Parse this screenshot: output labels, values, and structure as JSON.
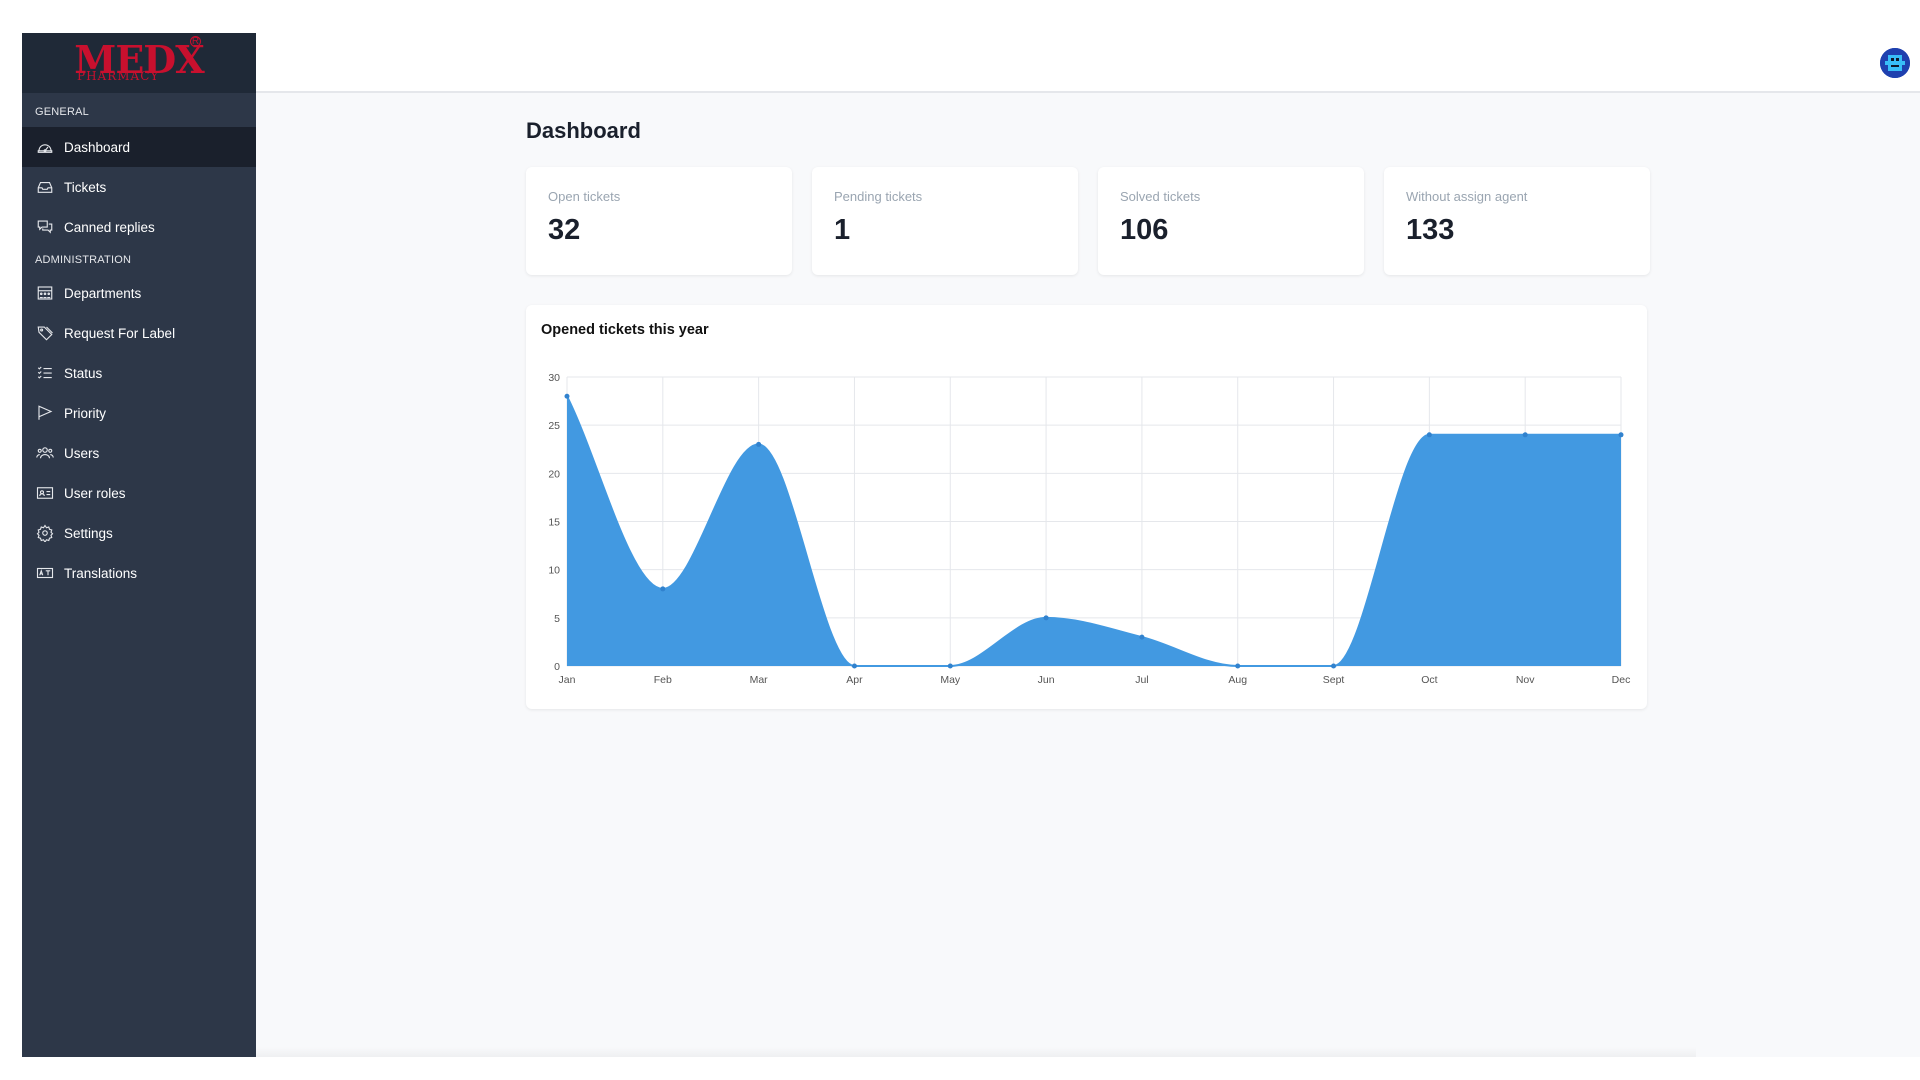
{
  "brand": {
    "name": "MEDX",
    "sub": "PHARMACY",
    "reg": "R"
  },
  "sidebar": {
    "sections": [
      {
        "title": "GENERAL"
      },
      {
        "title": "ADMINISTRATION"
      }
    ],
    "items": [
      {
        "label": "Dashboard",
        "icon": "gauge-icon",
        "active": true
      },
      {
        "label": "Tickets",
        "icon": "inbox-icon"
      },
      {
        "label": "Canned replies",
        "icon": "chat-bubbles-icon"
      },
      {
        "label": "Departments",
        "icon": "office-icon"
      },
      {
        "label": "Request For Label",
        "icon": "tag-icon"
      },
      {
        "label": "Status",
        "icon": "checklist-icon"
      },
      {
        "label": "Priority",
        "icon": "flag-icon"
      },
      {
        "label": "Users",
        "icon": "users-icon"
      },
      {
        "label": "User roles",
        "icon": "id-card-icon"
      },
      {
        "label": "Settings",
        "icon": "gear-icon"
      },
      {
        "label": "Translations",
        "icon": "translate-icon"
      }
    ]
  },
  "main": {
    "title": "Dashboard",
    "stats": [
      {
        "label": "Open tickets",
        "value": "32"
      },
      {
        "label": "Pending tickets",
        "value": "1"
      },
      {
        "label": "Solved tickets",
        "value": "106"
      },
      {
        "label": "Without assign agent",
        "value": "133"
      }
    ]
  },
  "colors": {
    "sidebar": "#2d3748",
    "active": "#1a202c",
    "chart_fill": "#4299e1",
    "brand": "#c8102e"
  },
  "chart_data": {
    "type": "area",
    "title": "Opened tickets this year",
    "categories": [
      "Jan",
      "Feb",
      "Mar",
      "Apr",
      "May",
      "Jun",
      "Jul",
      "Aug",
      "Sept",
      "Oct",
      "Nov",
      "Dec"
    ],
    "series": [
      {
        "values": [
          28,
          8,
          23,
          0,
          0,
          5,
          3,
          0,
          0,
          24,
          24,
          24
        ]
      }
    ],
    "ylim": [
      0,
      30
    ],
    "yticks": [
      0,
      5,
      10,
      15,
      20,
      25,
      30
    ],
    "grid": true
  }
}
